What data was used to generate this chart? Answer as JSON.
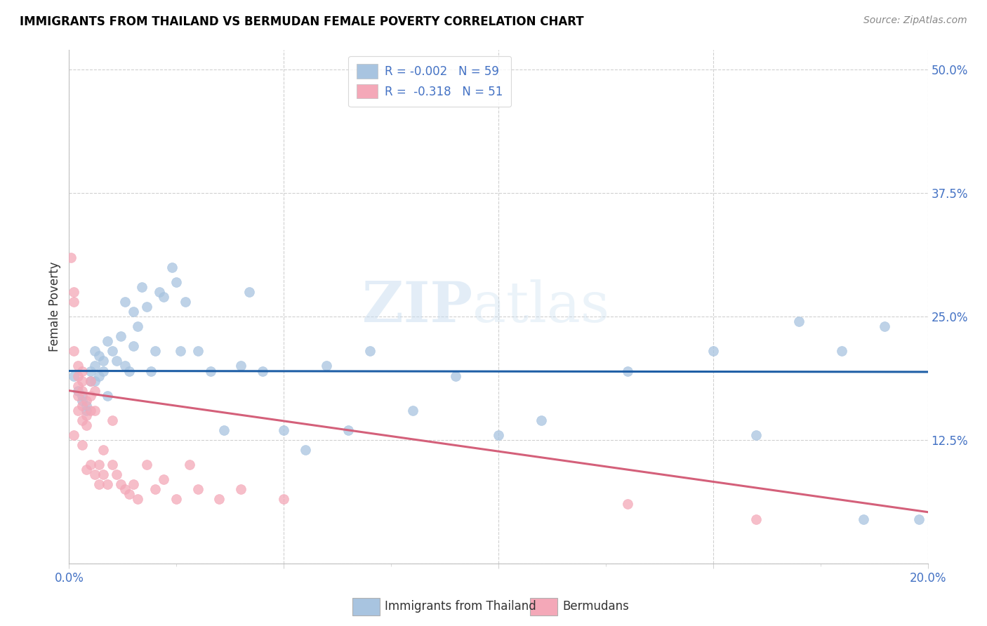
{
  "title": "IMMIGRANTS FROM THAILAND VS BERMUDAN FEMALE POVERTY CORRELATION CHART",
  "source": "Source: ZipAtlas.com",
  "ylabel": "Female Poverty",
  "y_ticks": [
    0.0,
    0.125,
    0.25,
    0.375,
    0.5
  ],
  "y_tick_labels": [
    "",
    "12.5%",
    "25.0%",
    "37.5%",
    "50.0%"
  ],
  "legend_entry1": "R = -0.002   N = 59",
  "legend_entry2": "R =  -0.318   N = 51",
  "legend_label1": "Immigrants from Thailand",
  "legend_label2": "Bermudans",
  "color_blue": "#a8c4e0",
  "color_pink": "#f4a8b8",
  "line_blue": "#1f5fa6",
  "line_pink": "#d4607a",
  "watermark_zip": "ZIP",
  "watermark_atlas": "atlas",
  "blue_scatter_x": [
    0.001,
    0.002,
    0.003,
    0.003,
    0.004,
    0.004,
    0.005,
    0.005,
    0.006,
    0.006,
    0.006,
    0.007,
    0.007,
    0.008,
    0.008,
    0.009,
    0.009,
    0.01,
    0.011,
    0.012,
    0.013,
    0.013,
    0.014,
    0.015,
    0.015,
    0.016,
    0.017,
    0.018,
    0.019,
    0.02,
    0.021,
    0.022,
    0.024,
    0.025,
    0.026,
    0.027,
    0.03,
    0.033,
    0.036,
    0.04,
    0.042,
    0.045,
    0.05,
    0.055,
    0.06,
    0.065,
    0.07,
    0.08,
    0.09,
    0.1,
    0.11,
    0.13,
    0.15,
    0.16,
    0.17,
    0.18,
    0.185,
    0.19,
    0.198
  ],
  "blue_scatter_y": [
    0.19,
    0.175,
    0.17,
    0.165,
    0.16,
    0.155,
    0.195,
    0.185,
    0.215,
    0.2,
    0.185,
    0.21,
    0.19,
    0.205,
    0.195,
    0.225,
    0.17,
    0.215,
    0.205,
    0.23,
    0.2,
    0.265,
    0.195,
    0.255,
    0.22,
    0.24,
    0.28,
    0.26,
    0.195,
    0.215,
    0.275,
    0.27,
    0.3,
    0.285,
    0.215,
    0.265,
    0.215,
    0.195,
    0.135,
    0.2,
    0.275,
    0.195,
    0.135,
    0.115,
    0.2,
    0.135,
    0.215,
    0.155,
    0.19,
    0.13,
    0.145,
    0.195,
    0.215,
    0.13,
    0.245,
    0.215,
    0.045,
    0.24,
    0.045
  ],
  "pink_scatter_x": [
    0.0005,
    0.001,
    0.001,
    0.001,
    0.001,
    0.002,
    0.002,
    0.002,
    0.002,
    0.002,
    0.003,
    0.003,
    0.003,
    0.003,
    0.003,
    0.003,
    0.004,
    0.004,
    0.004,
    0.004,
    0.005,
    0.005,
    0.005,
    0.005,
    0.006,
    0.006,
    0.006,
    0.007,
    0.007,
    0.008,
    0.008,
    0.009,
    0.01,
    0.01,
    0.011,
    0.012,
    0.013,
    0.014,
    0.015,
    0.016,
    0.018,
    0.02,
    0.022,
    0.025,
    0.028,
    0.03,
    0.035,
    0.04,
    0.05,
    0.13,
    0.16
  ],
  "pink_scatter_y": [
    0.31,
    0.275,
    0.265,
    0.215,
    0.13,
    0.2,
    0.19,
    0.18,
    0.17,
    0.155,
    0.195,
    0.185,
    0.175,
    0.16,
    0.145,
    0.12,
    0.165,
    0.15,
    0.14,
    0.095,
    0.185,
    0.17,
    0.155,
    0.1,
    0.175,
    0.155,
    0.09,
    0.1,
    0.08,
    0.115,
    0.09,
    0.08,
    0.145,
    0.1,
    0.09,
    0.08,
    0.075,
    0.07,
    0.08,
    0.065,
    0.1,
    0.075,
    0.085,
    0.065,
    0.1,
    0.075,
    0.065,
    0.075,
    0.065,
    0.06,
    0.045
  ],
  "xlim": [
    0.0,
    0.2
  ],
  "ylim": [
    0.0,
    0.52
  ],
  "blue_trendline_x": [
    0.0,
    0.2
  ],
  "blue_trendline_y": [
    0.195,
    0.194
  ],
  "pink_trendline_x": [
    0.0,
    0.2
  ],
  "pink_trendline_y": [
    0.175,
    0.052
  ]
}
